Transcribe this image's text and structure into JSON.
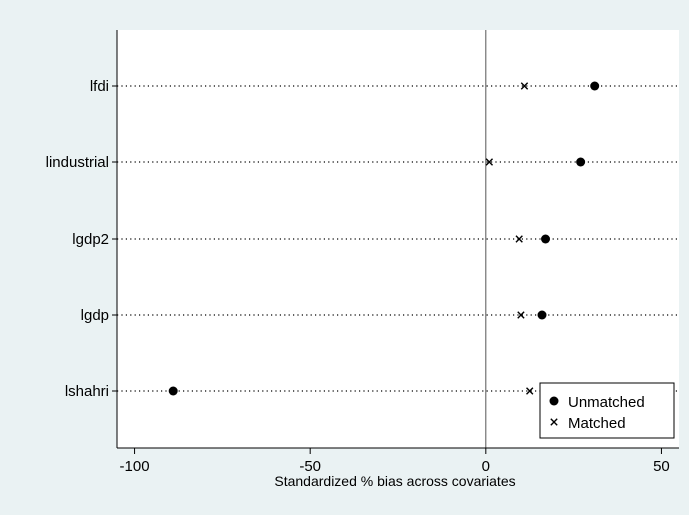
{
  "chart_data": {
    "type": "scatter",
    "xlabel": "Standardized % bias across covariates",
    "ylabel": "",
    "xlim": [
      -105,
      55
    ],
    "x_ticks": [
      -100,
      -50,
      0,
      50
    ],
    "categories": [
      "lfdi",
      "lindustrial",
      "lgdp2",
      "lgdp",
      "lshahri"
    ],
    "series": [
      {
        "name": "Unmatched",
        "marker": "filled-circle",
        "values": [
          31.0,
          27.0,
          17.0,
          16.0,
          -89.0
        ]
      },
      {
        "name": "Matched",
        "marker": "x",
        "values": [
          11.0,
          1.0,
          9.5,
          10.0,
          12.5
        ]
      }
    ],
    "legend_position": "bottom-right",
    "grid": "dotted horizontal per category",
    "reference_line": 0,
    "colors": {
      "background": "#eaf2f3",
      "plot_area": "#ffffff",
      "marker": "#000000"
    }
  }
}
